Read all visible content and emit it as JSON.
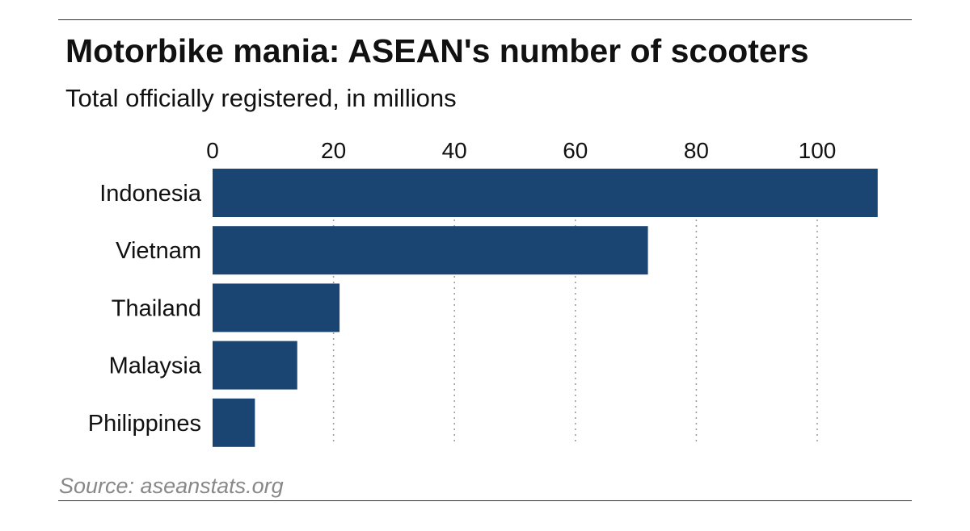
{
  "chart_data": {
    "type": "bar",
    "orientation": "horizontal",
    "title": "Motorbike mania: ASEAN's number of scooters",
    "subtitle": "Total officially registered, in millions",
    "source": "Source: aseanstats.org",
    "categories": [
      "Indonesia",
      "Vietnam",
      "Thailand",
      "Malaysia",
      "Philippines"
    ],
    "values": [
      110,
      72,
      21,
      14,
      7
    ],
    "xlabel": "",
    "ylabel": "",
    "xlim": [
      0,
      110
    ],
    "xticks": [
      0,
      20,
      40,
      60,
      80,
      100
    ],
    "grid": "dotted vertical",
    "bar_color": "#1a4573",
    "axis_position": "top"
  }
}
